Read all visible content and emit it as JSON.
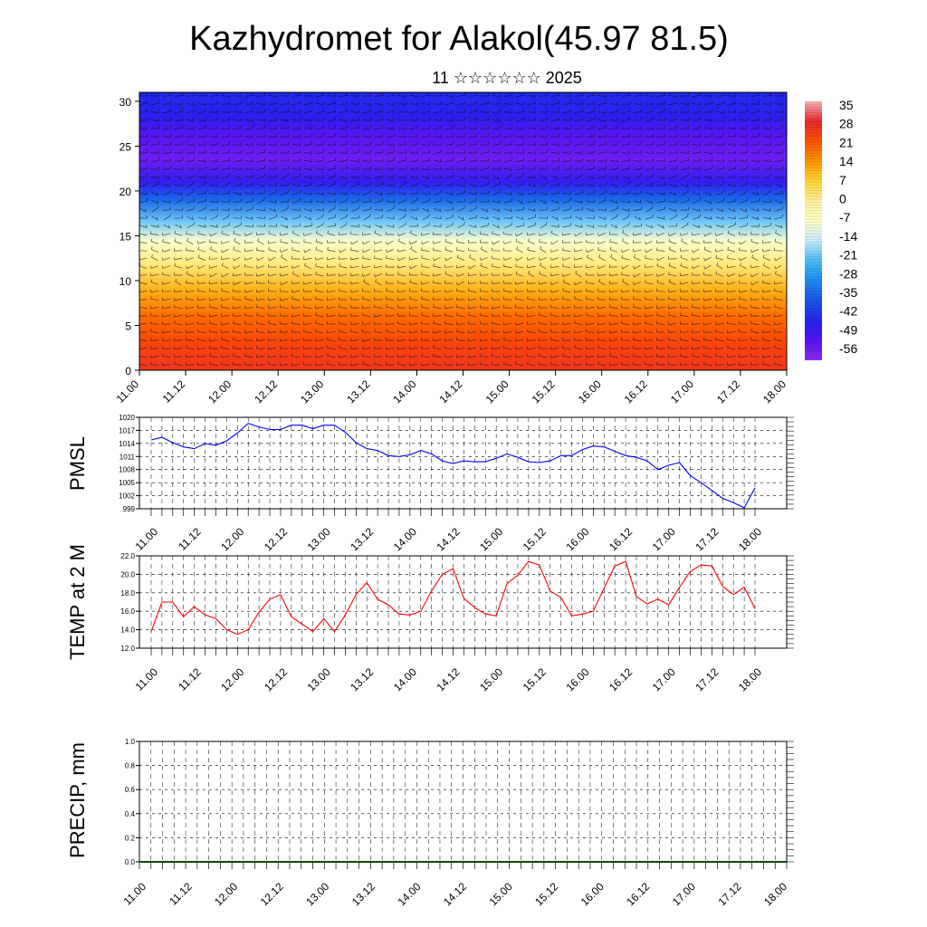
{
  "title": "Kazhydromet for Alakol(45.97 81.5)",
  "subtitle": "11 ☆☆☆☆☆☆ 2025",
  "x_ticks": [
    "11.00",
    "11.12",
    "12.00",
    "12.12",
    "13.00",
    "13.12",
    "14.00",
    "14.12",
    "15.00",
    "15.12",
    "16.00",
    "16.12",
    "17.00",
    "17.12",
    "18.00"
  ],
  "chart_data": [
    {
      "type": "heatmap",
      "ylim": [
        0,
        31
      ],
      "y_ticks": [
        0,
        5,
        10,
        15,
        20,
        25,
        30
      ],
      "colorbar_labels": [
        "35",
        "28",
        "21",
        "14",
        "7",
        "0",
        "-7",
        "-14",
        "-21",
        "-28",
        "-35",
        "-42",
        "-49",
        "-56"
      ],
      "colorbar_stops": [
        "#f2b3b3",
        "#e8282e",
        "#ff5000",
        "#ff9400",
        "#ffd634",
        "#fff29a",
        "#ffffc8",
        "#c8eafc",
        "#4dbbf5",
        "#1d8cf0",
        "#1858e6",
        "#2222ef",
        "#5512f0",
        "#8a2cf0"
      ],
      "profile": [
        {
          "y": 0,
          "value": 28
        },
        {
          "y": 3,
          "value": 25
        },
        {
          "y": 6,
          "value": 20
        },
        {
          "y": 9,
          "value": 12
        },
        {
          "y": 12,
          "value": 2
        },
        {
          "y": 14.5,
          "value": -8
        },
        {
          "y": 16.5,
          "value": -20
        },
        {
          "y": 19,
          "value": -35
        },
        {
          "y": 21,
          "value": -47
        },
        {
          "y": 23.5,
          "value": -56
        },
        {
          "y": 26,
          "value": -53
        },
        {
          "y": 28,
          "value": -47
        },
        {
          "y": 31,
          "value": -44
        }
      ]
    },
    {
      "type": "line",
      "ylabel": "PMSL",
      "ylim": [
        999,
        1020
      ],
      "y_ticks": [
        "1020",
        "1017",
        "1014",
        "1011",
        "1008",
        "1005",
        "1002",
        "999"
      ],
      "color": "#0000ff",
      "series": [
        {
          "values": [
            1014.8,
            1015.4,
            1014.2,
            1013.2,
            1012.8,
            1014.0,
            1013.6,
            1014.6,
            1016.4,
            1018.6,
            1017.8,
            1017.2,
            1017.2,
            1018.2,
            1018.2,
            1017.4,
            1018.2,
            1018.2,
            1016.6,
            1014.2,
            1012.8,
            1012.4,
            1011.2,
            1011.0,
            1011.4,
            1012.4,
            1011.6,
            1010.0,
            1009.4,
            1010.0,
            1009.8,
            1009.8,
            1010.6,
            1011.6,
            1010.8,
            1009.8,
            1009.6,
            1010.0,
            1011.2,
            1011.2,
            1012.6,
            1013.4,
            1013.2,
            1012.2,
            1011.2,
            1010.8,
            1010.0,
            1008.0,
            1009.0,
            1009.6,
            1006.6,
            1005.0,
            1003.2,
            1001.4,
            1000.4,
            999.2,
            1003.8
          ]
        }
      ]
    },
    {
      "type": "line",
      "ylabel": "TEMP at 2 M",
      "ylim": [
        12,
        22
      ],
      "y_ticks": [
        "22.0",
        "20.0",
        "18.0",
        "16.0",
        "14.0",
        "12.0"
      ],
      "color": "#ff0000",
      "series": [
        {
          "values": [
            13.8,
            17.0,
            17.0,
            15.4,
            16.5,
            15.6,
            15.2,
            14.0,
            13.5,
            14.0,
            15.9,
            17.3,
            17.8,
            15.4,
            14.6,
            13.8,
            15.2,
            13.8,
            15.6,
            17.8,
            19.1,
            17.3,
            16.7,
            15.7,
            15.6,
            16.0,
            18.2,
            20.0,
            20.6,
            17.4,
            16.4,
            15.7,
            15.5,
            19.0,
            19.9,
            21.4,
            21.0,
            18.2,
            17.5,
            15.5,
            15.7,
            16.0,
            18.5,
            20.9,
            21.4,
            17.6,
            16.8,
            17.3,
            16.7,
            18.6,
            20.3,
            21.0,
            20.9,
            18.7,
            17.8,
            18.6,
            16.3
          ]
        }
      ]
    },
    {
      "type": "bar",
      "ylabel": "PRECIP, mm",
      "ylim": [
        0,
        1
      ],
      "y_ticks": [
        "1.0",
        "0.8",
        "0.6",
        "0.4",
        "0.2",
        "0.0"
      ],
      "values": [
        0,
        0,
        0,
        0,
        0,
        0,
        0,
        0,
        0,
        0,
        0,
        0,
        0,
        0,
        0,
        0,
        0,
        0,
        0,
        0,
        0,
        0,
        0,
        0,
        0,
        0,
        0,
        0,
        0,
        0,
        0,
        0,
        0,
        0,
        0,
        0,
        0,
        0,
        0,
        0,
        0,
        0,
        0,
        0,
        0,
        0,
        0,
        0,
        0,
        0,
        0,
        0,
        0,
        0,
        0,
        0,
        0
      ]
    }
  ]
}
